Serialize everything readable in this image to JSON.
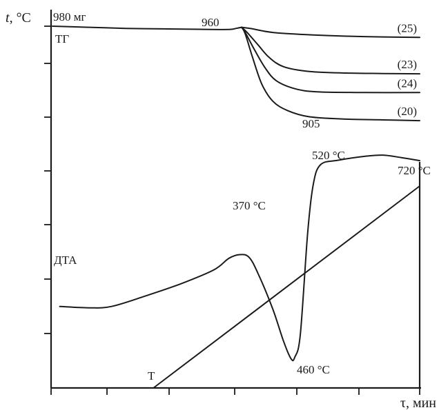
{
  "chart_data": {
    "type": "line",
    "xlabel_symbol": "τ",
    "xlabel_unit": ", мин",
    "ylabel_symbol": "t",
    "ylabel_unit": ", °C",
    "grid": false,
    "legend": "none",
    "tg": {
      "label": "ТГ",
      "start_mass_label": "980 мг",
      "onset_label": "960",
      "min_label": "905",
      "common": [
        [
          0,
          100
        ],
        [
          10,
          99.3
        ],
        [
          20,
          98.6
        ],
        [
          30,
          98.3
        ],
        [
          40,
          98
        ],
        [
          48,
          97.9
        ],
        [
          50,
          98.6
        ],
        [
          51.5,
          99.3
        ]
      ],
      "series": [
        {
          "name": "(25)",
          "values": [
            [
              51.5,
              99.3
            ],
            [
              54,
              98.5
            ],
            [
              60,
              96
            ],
            [
              70,
              94.5
            ],
            [
              80,
              93.6
            ],
            [
              90,
              93.1
            ],
            [
              100,
              92.8
            ]
          ]
        },
        {
          "name": "(23)",
          "values": [
            [
              51.5,
              99.3
            ],
            [
              53,
              96
            ],
            [
              56,
              88
            ],
            [
              59,
              80
            ],
            [
              63,
              74
            ],
            [
              70,
              71
            ],
            [
              80,
              70
            ],
            [
              90,
              69.7
            ],
            [
              100,
              69.5
            ]
          ]
        },
        {
          "name": "(24)",
          "values": [
            [
              51.5,
              99.3
            ],
            [
              52.5,
              96
            ],
            [
              55,
              85
            ],
            [
              58,
              73
            ],
            [
              61,
              65
            ],
            [
              66,
              60
            ],
            [
              72,
              58
            ],
            [
              85,
              57.5
            ],
            [
              100,
              57.5
            ]
          ]
        },
        {
          "name": "(20)",
          "values": [
            [
              51.5,
              99.3
            ],
            [
              52.5,
              95
            ],
            [
              54.5,
              80
            ],
            [
              57,
              63
            ],
            [
              60,
              52
            ],
            [
              64,
              46
            ],
            [
              70,
              42
            ],
            [
              80,
              40.5
            ],
            [
              90,
              40
            ],
            [
              100,
              39.5
            ]
          ]
        }
      ]
    },
    "dta": {
      "label": "ДТА",
      "values": [
        [
          2,
          21
        ],
        [
          10,
          20.5
        ],
        [
          16,
          21
        ],
        [
          25,
          25
        ],
        [
          35,
          30
        ],
        [
          44,
          35.5
        ],
        [
          48,
          40
        ],
        [
          51,
          41.5
        ],
        [
          53.5,
          40.5
        ],
        [
          56,
          34
        ],
        [
          60,
          20
        ],
        [
          63,
          7
        ],
        [
          65,
          0.3
        ],
        [
          66,
          1
        ],
        [
          67.5,
          10
        ],
        [
          69.5,
          50
        ],
        [
          71,
          69
        ],
        [
          73,
          77
        ],
        [
          78,
          78.8
        ],
        [
          85,
          80.3
        ],
        [
          90,
          80.8
        ],
        [
          95,
          79.8
        ],
        [
          100,
          78.6
        ]
      ],
      "annotations": [
        {
          "text": "370 °C",
          "x": 51,
          "y": 41.5
        },
        {
          "text": "460 °C",
          "x": 65,
          "y": 0.3
        },
        {
          "text": "520 °C",
          "x": 71,
          "y": 69
        },
        {
          "text": "720 °C",
          "x": 100,
          "y": 78.6
        }
      ]
    },
    "temperature": {
      "label": "Т",
      "values": [
        [
          27.5,
          0
        ],
        [
          100,
          100
        ]
      ]
    }
  }
}
